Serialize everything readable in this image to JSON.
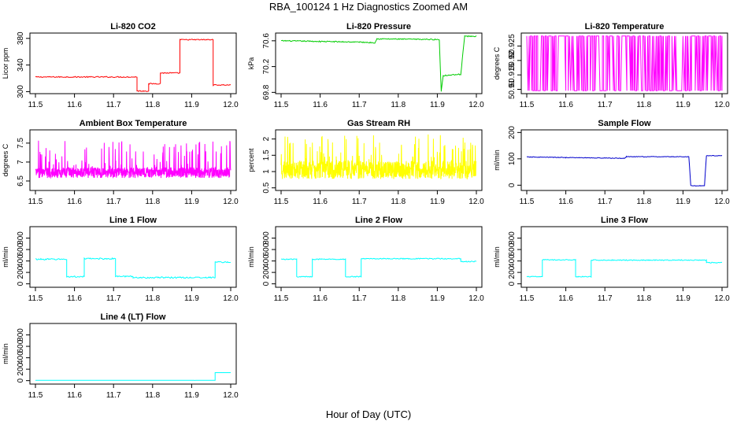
{
  "figure": {
    "title": "RBA_100124  1 Hz Diagnostics Zoomed AM",
    "xlabel": "Hour of Day (UTC)"
  },
  "chart_data": [
    {
      "type": "line",
      "title": "Li-820 CO2",
      "ylabel": "Licor ppm",
      "color": "#ff0000",
      "xlim": [
        11.5,
        12.0
      ],
      "ylim": [
        297,
        388
      ],
      "xticks": [
        "11.5",
        "11.6",
        "11.7",
        "11.8",
        "11.9",
        "12.0"
      ],
      "yticks": [
        300,
        340,
        380
      ],
      "kind": "step",
      "x": [
        11.5,
        11.76,
        11.76,
        11.79,
        11.79,
        11.82,
        11.82,
        11.87,
        11.87,
        11.955,
        11.955,
        12.0
      ],
      "y": [
        322,
        322,
        301,
        301,
        312,
        312,
        328,
        328,
        378,
        378,
        310,
        310
      ],
      "noise": 0.8
    },
    {
      "type": "line",
      "title": "Li-820 Pressure",
      "ylabel": "kPa",
      "color": "#00cc00",
      "xlim": [
        11.5,
        12.0
      ],
      "ylim": [
        69.78,
        70.72
      ],
      "xticks": [
        "11.5",
        "11.6",
        "11.7",
        "11.8",
        "11.9",
        "12.0"
      ],
      "yticks": [
        69.8,
        70.2,
        70.6
      ],
      "kind": "step",
      "x": [
        11.5,
        11.6,
        11.7,
        11.74,
        11.745,
        11.9,
        11.905,
        11.91,
        11.915,
        11.955,
        11.96,
        11.97,
        12.0
      ],
      "y": [
        70.6,
        70.59,
        70.58,
        70.57,
        70.63,
        70.62,
        70.62,
        69.82,
        70.06,
        70.08,
        70.08,
        70.67,
        70.67
      ],
      "noise": 0.008
    },
    {
      "type": "line",
      "title": "Li-820 Temperature",
      "ylabel": "degrees C",
      "color": "#ff00ff",
      "xlim": [
        11.5,
        12.0
      ],
      "ylim": [
        50.9085,
        50.9295
      ],
      "xticks": [
        "11.5",
        "11.6",
        "11.7",
        "11.8",
        "11.9",
        "12.0"
      ],
      "yticks": [
        50.91,
        50.915,
        50.92,
        50.925
      ],
      "kind": "binary",
      "levels": [
        50.9095,
        50.9285
      ],
      "segments": 160
    },
    {
      "type": "line",
      "title": "Ambient Box Temperature",
      "ylabel": "degrees C",
      "color": "#ff00ff",
      "xlim": [
        11.5,
        12.0
      ],
      "ylim": [
        6.25,
        7.85
      ],
      "xticks": [
        "11.5",
        "11.6",
        "11.7",
        "11.8",
        "11.9",
        "12.0"
      ],
      "yticks": [
        6.5,
        7.0,
        7.5
      ],
      "kind": "noisy",
      "base": 6.72,
      "noise": 0.14,
      "spike": 0.9,
      "points": 900
    },
    {
      "type": "line",
      "title": "Gas Stream RH",
      "ylabel": "percent",
      "color": "#ffff00",
      "xlim": [
        11.5,
        12.0
      ],
      "ylim": [
        0.42,
        2.28
      ],
      "xticks": [
        "11.5",
        "11.6",
        "11.7",
        "11.8",
        "11.9",
        "12.0"
      ],
      "yticks": [
        0.5,
        1.0,
        1.5,
        2.0
      ],
      "kind": "noisy",
      "base": 1.05,
      "noise": 0.28,
      "spike": 1.1,
      "points": 900
    },
    {
      "type": "line",
      "title": "Sample Flow",
      "ylabel": "ml/min",
      "color": "#0000cc",
      "xlim": [
        11.5,
        12.0
      ],
      "ylim": [
        -20,
        210
      ],
      "xticks": [
        "11.5",
        "11.6",
        "11.7",
        "11.8",
        "11.9",
        "12.0"
      ],
      "yticks": [
        0,
        100,
        200
      ],
      "kind": "step",
      "x": [
        11.5,
        11.6,
        11.7,
        11.75,
        11.755,
        11.915,
        11.92,
        11.955,
        11.96,
        12.0
      ],
      "y": [
        107,
        105,
        103,
        102,
        108,
        108,
        -2,
        -2,
        112,
        112
      ],
      "noise": 1.2
    },
    {
      "type": "line",
      "title": "Line 1 Flow",
      "ylabel": "ml/min",
      "color": "#00ffff",
      "xlim": [
        11.5,
        12.0
      ],
      "ylim": [
        -60,
        1000
      ],
      "xticks": [
        "11.5",
        "11.6",
        "11.7",
        "11.8",
        "11.9",
        "12.0"
      ],
      "yticks": [
        0,
        200,
        400,
        600,
        800
      ],
      "kind": "step",
      "x": [
        11.5,
        11.58,
        11.58,
        11.625,
        11.625,
        11.705,
        11.705,
        11.75,
        11.75,
        11.96,
        11.96,
        12.0
      ],
      "y": [
        430,
        430,
        125,
        125,
        440,
        440,
        130,
        130,
        110,
        110,
        380,
        380
      ],
      "noise": 12
    },
    {
      "type": "line",
      "title": "Line 2 Flow",
      "ylabel": "ml/min",
      "color": "#00ffff",
      "xlim": [
        11.5,
        12.0
      ],
      "ylim": [
        -60,
        1000
      ],
      "xticks": [
        "11.5",
        "11.6",
        "11.7",
        "11.8",
        "11.9",
        "12.0"
      ],
      "yticks": [
        0,
        200,
        400,
        600,
        800
      ],
      "kind": "step",
      "x": [
        11.5,
        11.54,
        11.54,
        11.58,
        11.58,
        11.665,
        11.665,
        11.705,
        11.705,
        11.96,
        11.96,
        12.0
      ],
      "y": [
        430,
        430,
        125,
        125,
        430,
        430,
        125,
        125,
        440,
        440,
        390,
        390
      ],
      "noise": 8
    },
    {
      "type": "line",
      "title": "Line 3 Flow",
      "ylabel": "ml/min",
      "color": "#00ffff",
      "xlim": [
        11.5,
        12.0
      ],
      "ylim": [
        -60,
        1000
      ],
      "xticks": [
        "11.5",
        "11.6",
        "11.7",
        "11.8",
        "11.9",
        "12.0"
      ],
      "yticks": [
        0,
        200,
        400,
        600,
        800
      ],
      "kind": "step",
      "x": [
        11.5,
        11.54,
        11.54,
        11.625,
        11.625,
        11.665,
        11.665,
        11.96,
        11.96,
        12.0
      ],
      "y": [
        125,
        125,
        420,
        420,
        125,
        125,
        415,
        415,
        370,
        370
      ],
      "noise": 8
    },
    {
      "type": "line",
      "title": "Line 4 (LT) Flow",
      "ylabel": "ml/min",
      "color": "#00ffff",
      "xlim": [
        11.5,
        12.0
      ],
      "ylim": [
        -60,
        1000
      ],
      "xticks": [
        "11.5",
        "11.6",
        "11.7",
        "11.8",
        "11.9",
        "12.0"
      ],
      "yticks": [
        0,
        200,
        400,
        600,
        800
      ],
      "kind": "step",
      "x": [
        11.5,
        11.96,
        11.96,
        12.0
      ],
      "y": [
        5,
        5,
        140,
        140
      ],
      "noise": 1
    }
  ]
}
